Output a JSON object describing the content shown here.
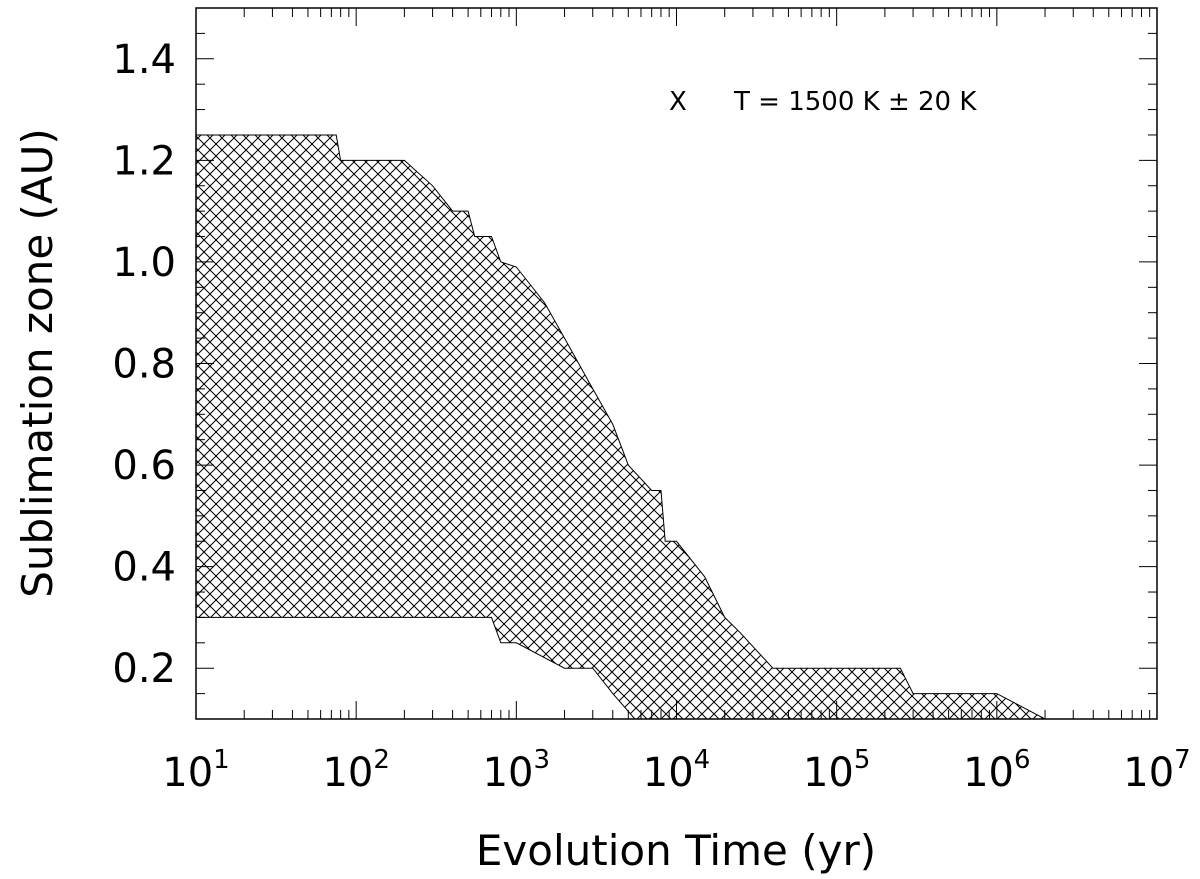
{
  "chart_data": {
    "type": "area",
    "xlabel": "Evolution Time (yr)",
    "ylabel": "Sublimation zone (AU)",
    "x_scale": "log",
    "xlim": [
      10,
      10000000
    ],
    "ylim": [
      0.1,
      1.5
    ],
    "x_ticks": [
      {
        "base": "10",
        "exp": "1",
        "value": 10
      },
      {
        "base": "10",
        "exp": "2",
        "value": 100
      },
      {
        "base": "10",
        "exp": "3",
        "value": 1000
      },
      {
        "base": "10",
        "exp": "4",
        "value": 10000
      },
      {
        "base": "10",
        "exp": "5",
        "value": 100000
      },
      {
        "base": "10",
        "exp": "6",
        "value": 1000000
      },
      {
        "base": "10",
        "exp": "7",
        "value": 10000000
      }
    ],
    "y_ticks": [
      {
        "label": "0.2",
        "value": 0.2
      },
      {
        "label": "0.4",
        "value": 0.4
      },
      {
        "label": "0.6",
        "value": 0.6
      },
      {
        "label": "0.8",
        "value": 0.8
      },
      {
        "label": "1.0",
        "value": 1.0
      },
      {
        "label": "1.2",
        "value": 1.2
      },
      {
        "label": "1.4",
        "value": 1.4
      }
    ],
    "legend": {
      "marker": "X",
      "text": "T = 1500 K ± 20 K",
      "placement": "top-right"
    },
    "fill_pattern": "crosshatch",
    "color": "#000000",
    "band": {
      "upper": [
        [
          10,
          1.25
        ],
        [
          75,
          1.25
        ],
        [
          80,
          1.2
        ],
        [
          200,
          1.2
        ],
        [
          300,
          1.15
        ],
        [
          400,
          1.1
        ],
        [
          500,
          1.1
        ],
        [
          550,
          1.05
        ],
        [
          700,
          1.05
        ],
        [
          800,
          1.0
        ],
        [
          1000,
          0.99
        ],
        [
          1500,
          0.92
        ],
        [
          2000,
          0.85
        ],
        [
          3000,
          0.75
        ],
        [
          4000,
          0.68
        ],
        [
          5000,
          0.6
        ],
        [
          7000,
          0.55
        ],
        [
          8000,
          0.55
        ],
        [
          8500,
          0.45
        ],
        [
          10000,
          0.45
        ],
        [
          15000,
          0.38
        ],
        [
          20000,
          0.3
        ],
        [
          25000,
          0.27
        ],
        [
          40000,
          0.2
        ],
        [
          250000,
          0.2
        ],
        [
          300000,
          0.15
        ],
        [
          1000000,
          0.15
        ],
        [
          2000000,
          0.1
        ],
        [
          10000000,
          0.1
        ]
      ],
      "lower": [
        [
          10,
          0.3
        ],
        [
          700,
          0.3
        ],
        [
          800,
          0.25
        ],
        [
          1000,
          0.25
        ],
        [
          2000,
          0.2
        ],
        [
          3000,
          0.2
        ],
        [
          4000,
          0.15
        ],
        [
          5500,
          0.1
        ],
        [
          2000000,
          0.1
        ]
      ]
    }
  }
}
